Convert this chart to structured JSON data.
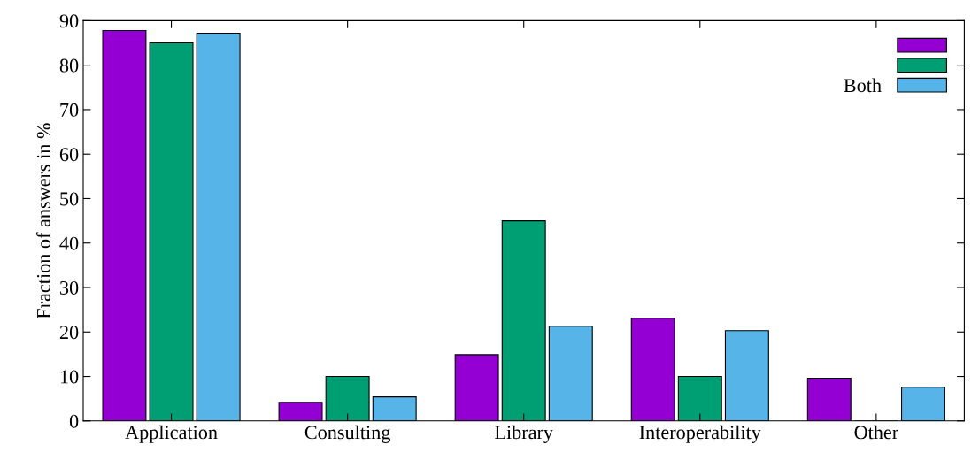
{
  "chart_data": {
    "type": "bar",
    "ylabel": "Fraction of answers in %",
    "categories": [
      "Application",
      "Consulting",
      "Library",
      "Interoperability",
      "Other"
    ],
    "series": [
      {
        "color": "#9400d3",
        "values": [
          87.8,
          4.2,
          14.9,
          23.1,
          9.6
        ]
      },
      {
        "color": "#009e73",
        "values": [
          85.0,
          10.0,
          45.0,
          10.0,
          0
        ]
      },
      {
        "name": "Both",
        "color": "#56b4e9",
        "values": [
          87.2,
          5.4,
          21.3,
          20.3,
          7.6
        ]
      }
    ],
    "ylim": [
      0,
      90
    ],
    "yticks": [
      0,
      10,
      20,
      30,
      40,
      50,
      60,
      70,
      80,
      90
    ],
    "grid": false,
    "legend": "top right"
  }
}
